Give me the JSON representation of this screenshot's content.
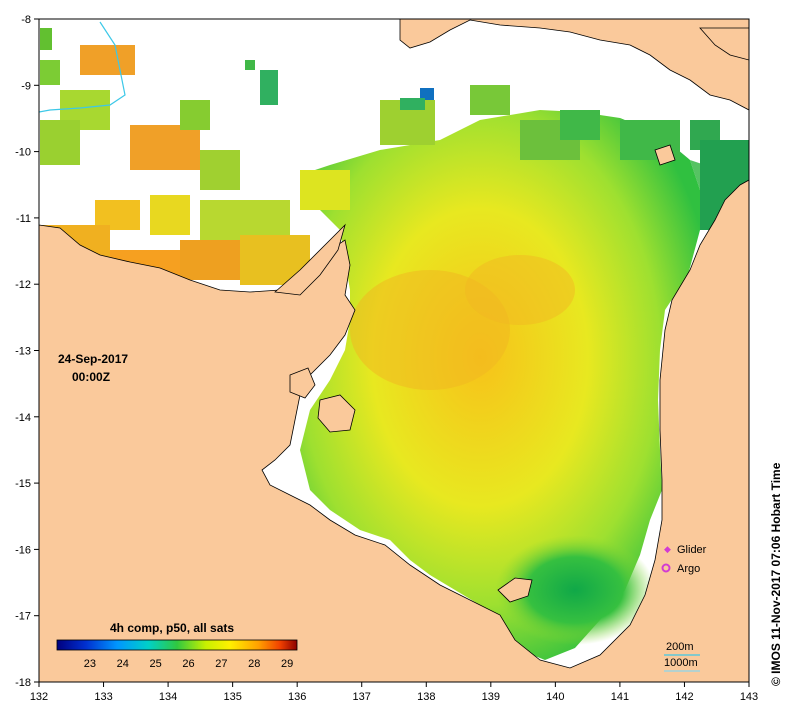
{
  "map": {
    "date": "24-Sep-2017",
    "time": "00:00Z",
    "credit": "© IMOS 11-Nov-2017 07:06 Hobart Time",
    "x_ticks": [
      "132",
      "133",
      "134",
      "135",
      "136",
      "137",
      "138",
      "139",
      "140",
      "141",
      "142",
      "143"
    ],
    "y_ticks": [
      "-8",
      "-9",
      "-10",
      "-11",
      "-12",
      "-13",
      "-14",
      "-15",
      "-16",
      "-17",
      "-18"
    ],
    "x_range": [
      132,
      143
    ],
    "y_range": [
      -18,
      -8
    ],
    "colors": {
      "land": "#fac99b",
      "no_data": "#ffffff",
      "isobath_200m": "#3cc8e8",
      "isobath_1000m": "#8ad6ec",
      "glider": "#d23cd2",
      "argo": "#d23cd2"
    }
  },
  "legend": {
    "title": "4h comp, p50, all sats",
    "ticks": [
      "23",
      "24",
      "25",
      "26",
      "27",
      "28",
      "29"
    ]
  },
  "markers": {
    "glider_label": "Glider",
    "argo_label": "Argo"
  },
  "isobaths": {
    "label_200": "200m",
    "label_1000": "1000m"
  }
}
